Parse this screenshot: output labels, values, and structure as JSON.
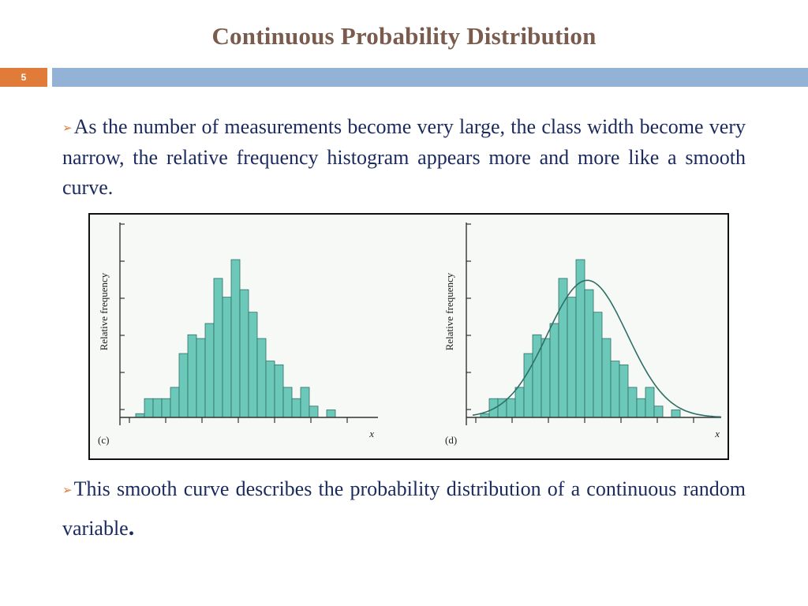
{
  "title": "Continuous Probability Distribution",
  "slide_number": "5",
  "bullets": [
    {
      "text": "As the number of measurements become very large, the class width become very narrow, the relative frequency histogram appears more and more like a smooth curve."
    },
    {
      "text": "This smooth curve describes the probability distribution of a continuous random variable",
      "end": "."
    }
  ],
  "colors": {
    "bar_fill": "#6cc8b8",
    "bar_stroke": "#2f6f66",
    "title": "#7a5c4f",
    "text": "#1a2a5e",
    "accent": "#e07b39",
    "band": "#93b3d6"
  },
  "chart_data": [
    {
      "type": "bar",
      "panel_label": "(c)",
      "ylabel": "Relative frequency",
      "xlabel": "x",
      "values": [
        1,
        5,
        5,
        5,
        8,
        17,
        22,
        21,
        25,
        37,
        32,
        42,
        34,
        28,
        21,
        15,
        14,
        8,
        5,
        8,
        3,
        0,
        2
      ],
      "ylim": [
        0,
        46
      ],
      "curve": false
    },
    {
      "type": "bar",
      "panel_label": "(d)",
      "ylabel": "Relative frequency",
      "xlabel": "x",
      "values": [
        1,
        5,
        5,
        5,
        8,
        17,
        22,
        21,
        25,
        37,
        32,
        42,
        34,
        28,
        21,
        15,
        14,
        8,
        5,
        8,
        3,
        0,
        2
      ],
      "ylim": [
        0,
        46
      ],
      "curve": true
    }
  ]
}
